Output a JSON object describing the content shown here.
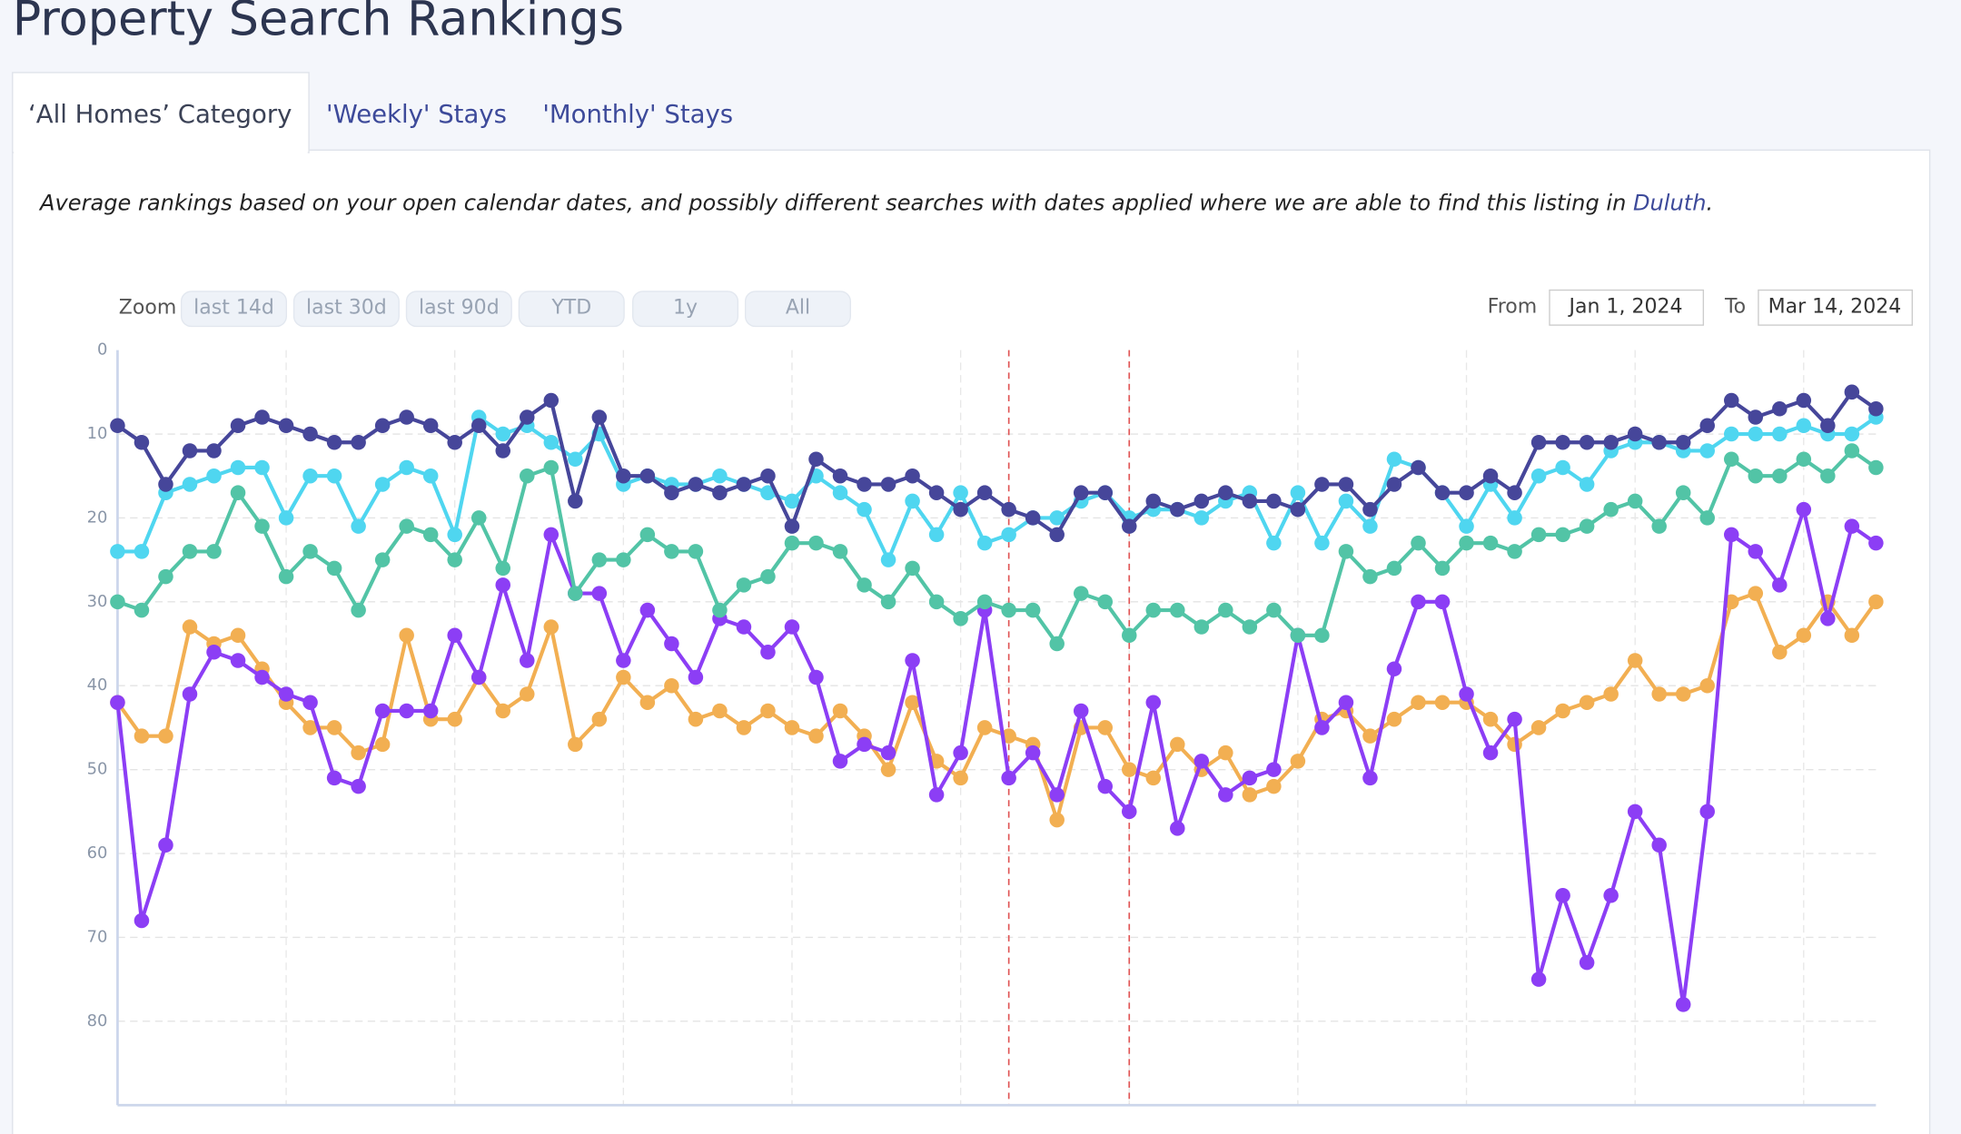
{
  "header": {
    "title": "Property Search Rankings"
  },
  "tabs": [
    "‘All Homes’ Category",
    "'Weekly' Stays",
    "'Monthly' Stays"
  ],
  "description": {
    "text": "Average rankings based on your open calendar dates, and possibly different searches with dates applied where we are able to find this listing in ",
    "link": "Duluth",
    "end": "."
  },
  "zoom": {
    "label": "Zoom",
    "buttons": [
      "last 14d",
      "last 30d",
      "last 90d",
      "YTD",
      "1y",
      "All"
    ]
  },
  "range": {
    "from_label": "From",
    "from": "Jan 1, 2024",
    "to_label": "To",
    "to": "Mar 14, 2024"
  },
  "chart_data": {
    "type": "line",
    "ylim": [
      0,
      90
    ],
    "y_reversed": true,
    "yticks": [
      0,
      10,
      20,
      30,
      40,
      50,
      60,
      70,
      80
    ],
    "grid": true,
    "markers": [
      37,
      42
    ],
    "series": [
      {
        "color": "#46469a",
        "values": [
          9,
          11,
          16,
          12,
          12,
          9,
          8,
          9,
          10,
          11,
          11,
          9,
          8,
          9,
          11,
          9,
          12,
          8,
          6,
          18,
          8,
          15,
          15,
          17,
          16,
          17,
          16,
          15,
          21,
          13,
          15,
          16,
          16,
          15,
          17,
          19,
          17,
          19,
          20,
          22,
          17,
          17,
          21,
          18,
          19,
          18,
          17,
          18,
          18,
          19,
          16,
          16,
          19,
          16,
          14,
          17,
          17,
          15,
          17,
          11,
          11,
          11,
          11,
          10,
          11,
          11,
          9,
          6,
          8,
          7,
          6,
          9,
          5,
          7
        ]
      },
      {
        "color": "#4fd6f0",
        "values": [
          24,
          24,
          17,
          16,
          15,
          14,
          14,
          20,
          15,
          15,
          21,
          16,
          14,
          15,
          22,
          8,
          10,
          9,
          11,
          13,
          10,
          16,
          15,
          16,
          16,
          15,
          16,
          17,
          18,
          15,
          17,
          19,
          25,
          18,
          22,
          17,
          23,
          22,
          20,
          20,
          18,
          17,
          20,
          19,
          19,
          20,
          18,
          17,
          23,
          17,
          23,
          18,
          21,
          13,
          14,
          17,
          21,
          16,
          20,
          15,
          14,
          16,
          12,
          11,
          11,
          12,
          12,
          10,
          10,
          10,
          9,
          10,
          10,
          8
        ]
      },
      {
        "color": "#52c4a6",
        "values": [
          30,
          31,
          27,
          24,
          24,
          17,
          21,
          27,
          24,
          26,
          31,
          25,
          21,
          22,
          25,
          20,
          26,
          15,
          14,
          29,
          25,
          25,
          22,
          24,
          24,
          31,
          28,
          27,
          23,
          23,
          24,
          28,
          30,
          26,
          30,
          32,
          30,
          31,
          31,
          35,
          29,
          30,
          34,
          31,
          31,
          33,
          31,
          33,
          31,
          34,
          34,
          24,
          27,
          26,
          23,
          26,
          23,
          23,
          24,
          22,
          22,
          21,
          19,
          18,
          21,
          17,
          20,
          13,
          15,
          15,
          13,
          15,
          12,
          14
        ]
      },
      {
        "color": "#8c3ef5",
        "values": [
          42,
          68,
          59,
          41,
          36,
          37,
          39,
          41,
          42,
          51,
          52,
          43,
          43,
          43,
          34,
          39,
          28,
          37,
          22,
          29,
          29,
          37,
          31,
          35,
          39,
          32,
          33,
          36,
          33,
          39,
          49,
          47,
          48,
          37,
          53,
          48,
          31,
          51,
          48,
          53,
          43,
          52,
          55,
          42,
          57,
          49,
          53,
          51,
          50,
          34,
          45,
          42,
          51,
          38,
          30,
          30,
          41,
          48,
          44,
          75,
          65,
          73,
          65,
          55,
          59,
          78,
          55,
          22,
          24,
          28,
          19,
          32,
          21,
          23
        ]
      },
      {
        "color": "#f2af52",
        "values": [
          42,
          46,
          46,
          33,
          35,
          34,
          38,
          42,
          45,
          45,
          48,
          47,
          34,
          44,
          44,
          39,
          43,
          41,
          33,
          47,
          44,
          39,
          42,
          40,
          44,
          43,
          45,
          43,
          45,
          46,
          43,
          46,
          50,
          42,
          49,
          51,
          45,
          46,
          47,
          56,
          45,
          45,
          50,
          51,
          47,
          50,
          48,
          53,
          52,
          49,
          44,
          43,
          46,
          44,
          42,
          42,
          42,
          44,
          47,
          45,
          43,
          42,
          41,
          37,
          41,
          41,
          40,
          30,
          29,
          36,
          34,
          30,
          34,
          30
        ]
      }
    ]
  }
}
